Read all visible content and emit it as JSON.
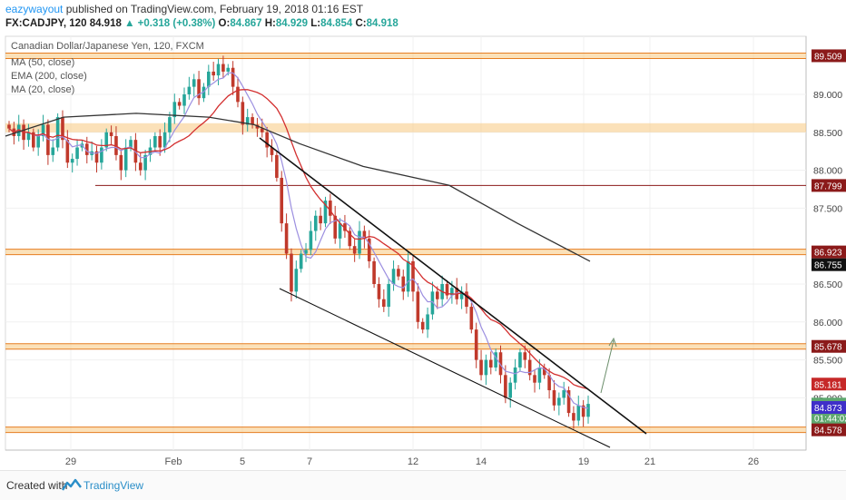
{
  "header": {
    "author": "eazywayout",
    "published": "published on TradingView.com, February 19, 2018 01:16 EST",
    "symbol": "FX:CADJPY, 120",
    "last": "84.918",
    "change": "+0.318 (+0.38%)",
    "o_label": "O:",
    "o": "84.867",
    "h_label": "H:",
    "h": "84.929",
    "l_label": "L:",
    "l": "84.854",
    "c_label": "C:",
    "c": "84.918"
  },
  "legend": {
    "title": "Canadian Dollar/Japanese Yen, 120, FXCM",
    "ma50": "MA (50, close)",
    "ema200": "EMA (200, close)",
    "ma20": "MA (20, close)"
  },
  "footer": {
    "created": "Created with",
    "brand": "TradingView"
  },
  "colors": {
    "up": "#26a69a",
    "down": "#c0392b",
    "ma50": "#d32f2f",
    "ema200": "#333333",
    "ma20": "#9c8fe0",
    "zone": "#f7c980",
    "zone_line": "#e67e22",
    "dark_red": "#8b1a1a"
  },
  "chart_data": {
    "type": "candlestick",
    "symbol": "CADJPY",
    "timeframe": "120",
    "x_ticks": [
      "29",
      "Feb",
      "5",
      "7",
      "12",
      "14",
      "19",
      "21",
      "26"
    ],
    "y_ticks": [
      "89.000",
      "88.500",
      "88.000",
      "87.500",
      "86.500",
      "86.000",
      "85.500",
      "85.000"
    ],
    "price_badges": [
      {
        "value": "89.509",
        "bg": "#8b1a1a",
        "fg": "#ffffff"
      },
      {
        "value": "87.799",
        "bg": "#8b1a1a",
        "fg": "#ffffff"
      },
      {
        "value": "86.923",
        "bg": "#8b1a1a",
        "fg": "#ffffff"
      },
      {
        "value": "86.755",
        "bg": "#111111",
        "fg": "#ffffff"
      },
      {
        "value": "85.678",
        "bg": "#8b1a1a",
        "fg": "#ffffff"
      },
      {
        "value": "85.181",
        "bg": "#c62828",
        "fg": "#ffffff"
      },
      {
        "value": "84.918",
        "bg": "#5fa86f",
        "fg": "#ffffff"
      },
      {
        "value": "01:44:02",
        "bg": "#5fa86f",
        "fg": "#ffffff"
      },
      {
        "value": "84.873",
        "bg": "#3f2fc9",
        "fg": "#ffffff"
      },
      {
        "value": "84.578",
        "bg": "#8b1a1a",
        "fg": "#ffffff"
      }
    ],
    "horizontal_levels": [
      {
        "price": 89.509,
        "kind": "zone"
      },
      {
        "price": 88.56,
        "kind": "band"
      },
      {
        "price": 87.799,
        "kind": "thin"
      },
      {
        "price": 86.923,
        "kind": "zone"
      },
      {
        "price": 85.678,
        "kind": "zone"
      },
      {
        "price": 84.578,
        "kind": "zone"
      }
    ],
    "candles_close": [
      88.55,
      88.45,
      88.6,
      88.4,
      88.5,
      88.3,
      88.45,
      88.6,
      88.2,
      88.3,
      88.7,
      88.4,
      88.1,
      88.15,
      88.3,
      88.35,
      88.2,
      88.25,
      88.1,
      88.3,
      88.5,
      88.45,
      88.2,
      88.0,
      88.3,
      88.4,
      88.1,
      88.0,
      88.2,
      88.3,
      88.45,
      88.3,
      88.5,
      88.7,
      88.9,
      88.85,
      89.0,
      89.1,
      89.2,
      88.95,
      89.1,
      89.3,
      89.25,
      89.4,
      89.3,
      89.35,
      89.1,
      88.9,
      88.6,
      88.7,
      88.6,
      88.55,
      88.5,
      88.3,
      88.2,
      87.9,
      87.3,
      86.9,
      86.4,
      86.7,
      86.9,
      86.95,
      87.2,
      87.4,
      87.3,
      87.6,
      87.4,
      87.1,
      87.3,
      87.2,
      87.0,
      86.9,
      87.2,
      87.1,
      86.8,
      86.5,
      86.3,
      86.2,
      86.5,
      86.7,
      86.6,
      86.4,
      86.8,
      86.4,
      86.0,
      85.9,
      86.1,
      86.4,
      86.3,
      86.5,
      86.35,
      86.45,
      86.3,
      86.4,
      86.2,
      85.9,
      85.5,
      85.3,
      85.5,
      85.4,
      85.6,
      85.3,
      85.0,
      85.2,
      85.4,
      85.6,
      85.5,
      85.3,
      85.2,
      85.4,
      85.3,
      85.1,
      84.9,
      85.0,
      85.1,
      84.8,
      84.7,
      84.9,
      84.75,
      84.92
    ]
  }
}
